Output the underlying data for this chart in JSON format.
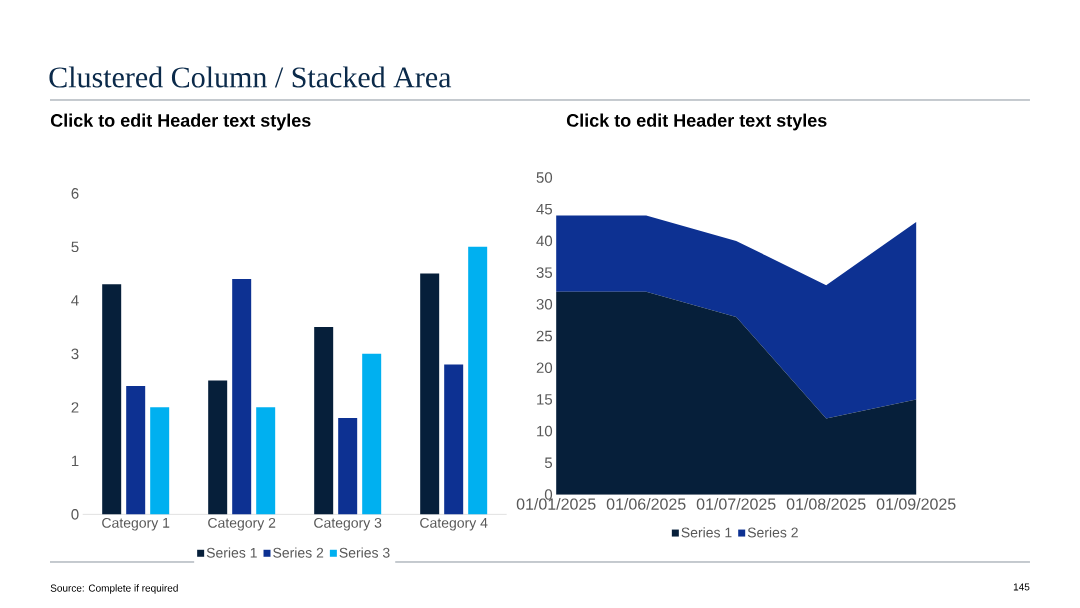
{
  "chart_data": [
    {
      "type": "bar",
      "title": "Click to edit Header text styles",
      "annotations": [
        "Clustered Column / Stacked Area",
        "Source: Complete if required",
        "145"
      ],
      "categories": [
        "Category 1",
        "Category 2",
        "Category 3",
        "Category 4"
      ],
      "series": [
        {
          "name": "Series 1",
          "color": "#061f3a",
          "values": [
            4.3,
            2.5,
            3.5,
            4.5
          ]
        },
        {
          "name": "Series 2",
          "color": "#0d3192",
          "values": [
            2.4,
            4.4,
            1.8,
            2.8
          ]
        },
        {
          "name": "Series 3",
          "color": "#00b0f0",
          "values": [
            2,
            2,
            3,
            5
          ]
        }
      ],
      "ylim": [
        0,
        6
      ],
      "yticks": [
        0,
        1,
        2,
        3,
        4,
        5,
        6
      ],
      "legend": "bottom"
    },
    {
      "type": "area",
      "title": "Click to edit Header text styles",
      "stacked": true,
      "categories": [
        "01/01/2025",
        "01/06/2025",
        "01/07/2025",
        "01/08/2025",
        "01/09/2025"
      ],
      "series": [
        {
          "name": "Series 1",
          "color": "#061f3a",
          "values": [
            32,
            32,
            28,
            12,
            15
          ]
        },
        {
          "name": "Series 2",
          "color": "#0d3192",
          "values": [
            12,
            12,
            12,
            21,
            28
          ]
        }
      ],
      "ylim": [
        0,
        50
      ],
      "yticks": [
        0,
        5,
        10,
        15,
        20,
        25,
        30,
        35,
        40,
        45,
        50
      ],
      "legend": "bottom"
    }
  ]
}
